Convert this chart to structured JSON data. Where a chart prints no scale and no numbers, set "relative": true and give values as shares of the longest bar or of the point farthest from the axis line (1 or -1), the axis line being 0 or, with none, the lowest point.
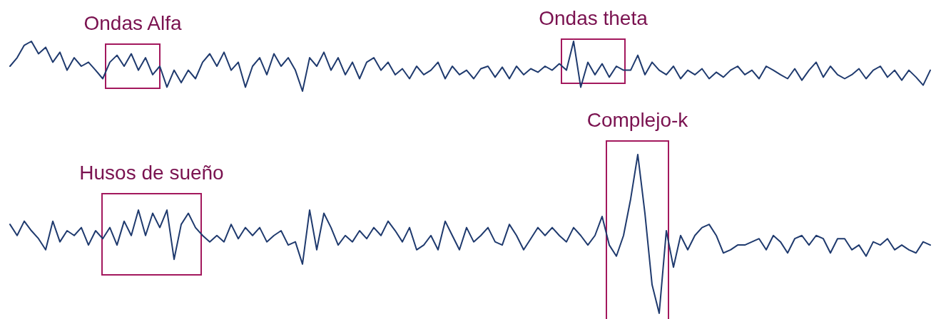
{
  "chart_data": [
    {
      "type": "line",
      "relative": true,
      "categories": [
        null,
        null,
        null,
        null,
        null,
        null,
        null,
        null,
        null,
        null,
        null,
        null,
        null,
        null,
        null,
        null,
        null,
        null,
        null,
        null,
        null,
        null,
        null,
        null,
        null,
        null,
        null,
        null,
        null,
        null,
        null,
        null,
        null,
        null,
        null,
        null,
        null,
        null,
        null,
        null,
        null,
        null,
        null,
        null,
        null,
        null,
        null,
        null,
        null,
        null,
        null,
        null,
        null,
        null,
        null,
        null,
        null,
        null,
        null,
        null,
        null,
        null,
        null,
        null,
        null,
        null,
        null,
        null,
        null,
        null,
        null,
        null,
        null,
        null,
        null,
        null,
        null,
        null,
        null,
        null,
        null,
        null,
        null,
        null,
        null,
        null,
        null,
        null,
        null,
        null,
        null,
        null,
        null,
        null,
        null,
        null,
        null,
        null,
        null,
        null,
        null,
        null,
        null,
        null,
        null,
        null,
        null,
        null,
        null,
        null,
        null,
        null,
        null,
        null,
        null,
        null,
        null,
        null,
        null,
        null,
        null,
        null,
        null,
        null,
        null,
        null,
        null,
        null,
        null,
        null
      ],
      "series": [
        {
          "color": "#1f3a6e",
          "values": [
            0.5,
            0.67,
            0.92,
            1,
            0.75,
            0.88,
            0.58,
            0.78,
            0.42,
            0.67,
            0.5,
            0.58,
            0.42,
            0.25,
            0.58,
            0.72,
            0.5,
            0.75,
            0.42,
            0.67,
            0.33,
            0.5,
            0.08,
            0.42,
            0.17,
            0.42,
            0.25,
            0.58,
            0.75,
            0.5,
            0.78,
            0.42,
            0.58,
            0.08,
            0.5,
            0.67,
            0.33,
            0.75,
            0.5,
            0.67,
            0.42,
            0,
            0.67,
            0.5,
            0.78,
            0.42,
            0.67,
            0.33,
            0.58,
            0.25,
            0.58,
            0.67,
            0.42,
            0.58,
            0.33,
            0.45,
            0.25,
            0.5,
            0.33,
            0.42,
            0.58,
            0.25,
            0.5,
            0.33,
            0.42,
            0.25,
            0.45,
            0.5,
            0.28,
            0.48,
            0.25,
            0.5,
            0.33,
            0.45,
            0.38,
            0.5,
            0.42,
            0.55,
            0.42,
            1,
            0.08,
            0.58,
            0.33,
            0.55,
            0.28,
            0.5,
            0.42,
            0.42,
            0.72,
            0.33,
            0.58,
            0.42,
            0.33,
            0.5,
            0.25,
            0.42,
            0.33,
            0.45,
            0.25,
            0.38,
            0.28,
            0.42,
            0.5,
            0.33,
            0.42,
            0.25,
            0.5,
            0.42,
            0.33,
            0.25,
            0.45,
            0.22,
            0.42,
            0.58,
            0.28,
            0.5,
            0.33,
            0.25,
            0.33,
            0.45,
            0.25,
            0.42,
            0.5,
            0.28,
            0.42,
            0.22,
            0.42,
            0.28,
            0.12,
            0.42
          ]
        }
      ],
      "annotations": [
        "Ondas Alfa",
        "Ondas theta"
      ]
    },
    {
      "type": "line",
      "relative": true,
      "categories": [
        null,
        null,
        null,
        null,
        null,
        null,
        null,
        null,
        null,
        null,
        null,
        null,
        null,
        null,
        null,
        null,
        null,
        null,
        null,
        null,
        null,
        null,
        null,
        null,
        null,
        null,
        null,
        null,
        null,
        null,
        null,
        null,
        null,
        null,
        null,
        null,
        null,
        null,
        null,
        null,
        null,
        null,
        null,
        null,
        null,
        null,
        null,
        null,
        null,
        null,
        null,
        null,
        null,
        null,
        null,
        null,
        null,
        null,
        null,
        null,
        null,
        null,
        null,
        null,
        null,
        null,
        null,
        null,
        null,
        null,
        null,
        null,
        null,
        null,
        null,
        null,
        null,
        null,
        null,
        null,
        null,
        null,
        null,
        null,
        null,
        null,
        null,
        null,
        null,
        null,
        null,
        null,
        null,
        null,
        null,
        null,
        null,
        null,
        null,
        null,
        null,
        null,
        null,
        null,
        null,
        null,
        null,
        null,
        null,
        null,
        null,
        null,
        null,
        null,
        null,
        null,
        null,
        null,
        null,
        null,
        null,
        null,
        null,
        null,
        null,
        null,
        null,
        null,
        null,
        null
      ],
      "series": [
        {
          "color": "#1f3a6e",
          "values": [
            0.56,
            0.49,
            0.58,
            0.52,
            0.47,
            0.4,
            0.58,
            0.45,
            0.52,
            0.49,
            0.54,
            0.43,
            0.52,
            0.47,
            0.54,
            0.43,
            0.58,
            0.49,
            0.65,
            0.49,
            0.63,
            0.54,
            0.65,
            0.34,
            0.56,
            0.63,
            0.54,
            0.49,
            0.45,
            0.49,
            0.45,
            0.56,
            0.47,
            0.54,
            0.49,
            0.54,
            0.45,
            0.49,
            0.52,
            0.43,
            0.45,
            0.31,
            0.65,
            0.4,
            0.63,
            0.54,
            0.43,
            0.49,
            0.45,
            0.52,
            0.47,
            0.54,
            0.49,
            0.58,
            0.52,
            0.45,
            0.54,
            0.4,
            0.43,
            0.49,
            0.4,
            0.58,
            0.49,
            0.4,
            0.54,
            0.45,
            0.49,
            0.54,
            0.45,
            0.43,
            0.56,
            0.49,
            0.4,
            0.47,
            0.54,
            0.49,
            0.54,
            0.49,
            0.45,
            0.54,
            0.49,
            0.43,
            0.49,
            0.61,
            0.43,
            0.36,
            0.49,
            0.72,
            1,
            0.63,
            0.18,
            0,
            0.52,
            0.29,
            0.49,
            0.4,
            0.49,
            0.54,
            0.56,
            0.49,
            0.38,
            0.4,
            0.43,
            0.43,
            0.45,
            0.47,
            0.4,
            0.49,
            0.45,
            0.38,
            0.47,
            0.49,
            0.43,
            0.49,
            0.47,
            0.38,
            0.47,
            0.47,
            0.4,
            0.43,
            0.36,
            0.45,
            0.43,
            0.47,
            0.4,
            0.43,
            0.4,
            0.38,
            0.45,
            0.43
          ]
        }
      ],
      "annotations": [
        "Husos de sueño",
        "Complejo-k"
      ]
    }
  ]
}
